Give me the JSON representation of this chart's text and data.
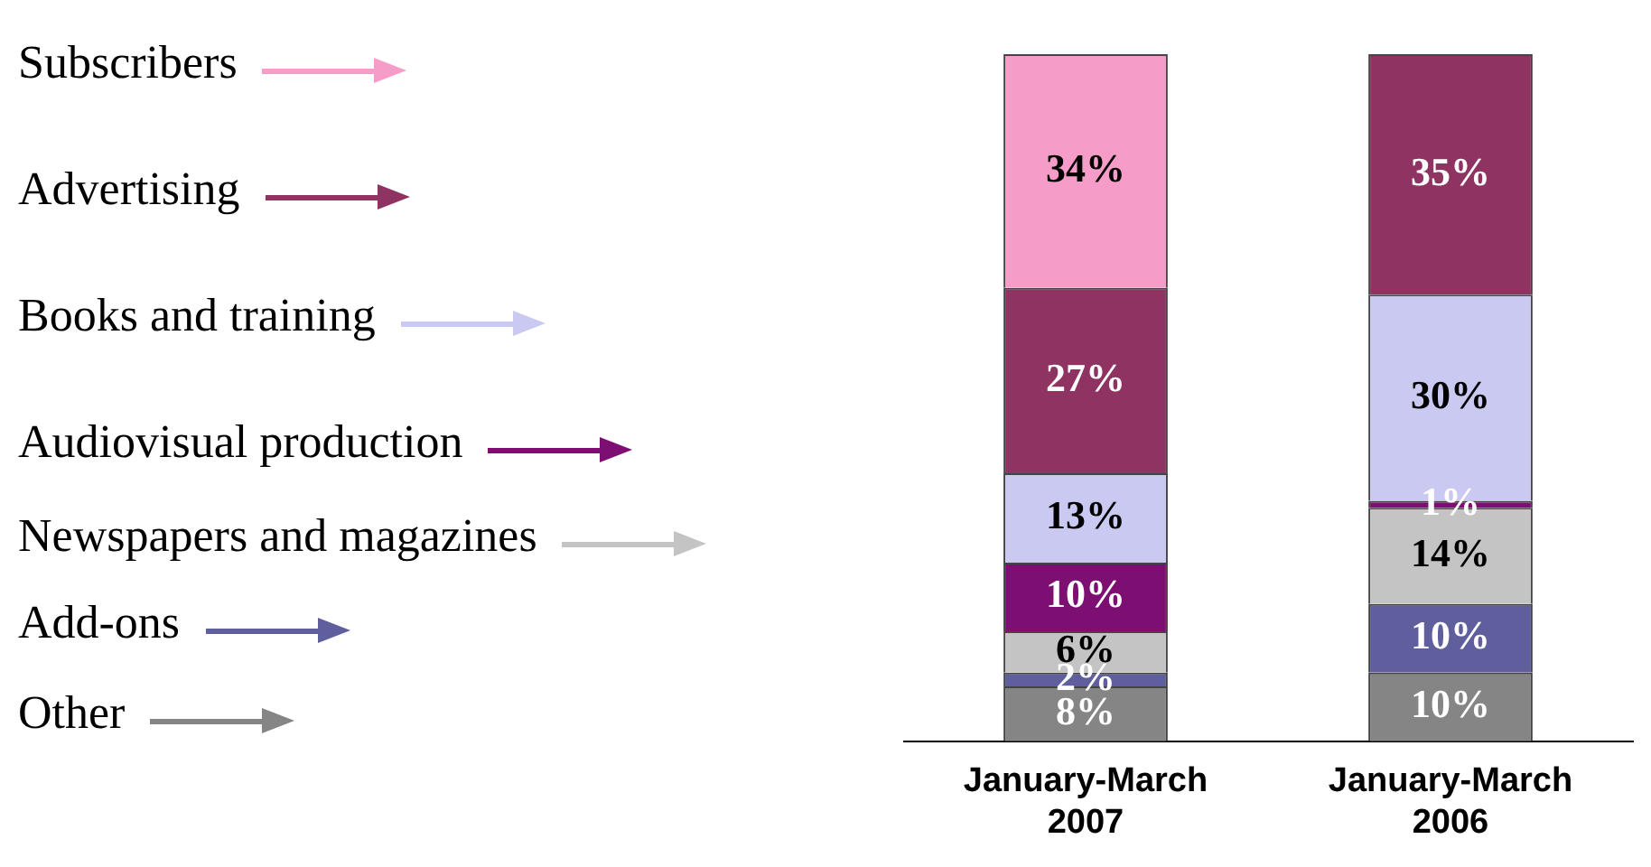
{
  "chart_data": {
    "type": "bar",
    "stacked": true,
    "tick_labels": "x",
    "legend": "left",
    "grid": false,
    "categories": [
      "January-March 2007",
      "January-March 2006"
    ],
    "series": [
      {
        "name": "Other",
        "color": "#858585",
        "values": [
          8,
          10
        ],
        "value_labels": [
          "8%",
          "10%"
        ]
      },
      {
        "name": "Add-ons",
        "color": "#5f5f9e",
        "values": [
          2,
          10
        ],
        "value_labels": [
          "2%",
          "10%"
        ]
      },
      {
        "name": "Newspapers and magazines",
        "color": "#c4c4c4",
        "values": [
          6,
          14
        ],
        "value_labels": [
          "6%",
          "14%"
        ]
      },
      {
        "name": "Audiovisual production",
        "color": "#7d0f73",
        "values": [
          10,
          1
        ],
        "value_labels": [
          "10%",
          "1%"
        ]
      },
      {
        "name": "Books and training",
        "color": "#c9c9f2",
        "values": [
          13,
          30
        ],
        "value_labels": [
          "13%",
          "30%"
        ]
      },
      {
        "name": "Advertising",
        "color": "#8f3362",
        "values": [
          27,
          35
        ],
        "value_labels": [
          "27%",
          "35%"
        ]
      },
      {
        "name": "Subscribers",
        "color": "#f59cc8",
        "values": [
          34,
          null
        ],
        "value_labels": [
          "34%",
          null
        ]
      }
    ]
  }
}
